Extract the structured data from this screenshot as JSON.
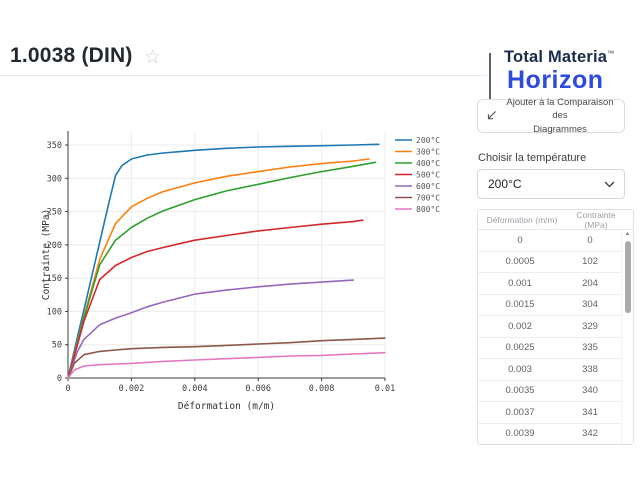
{
  "header": {
    "title": "1.0038 (DIN)",
    "favorite_icon": "star-outline"
  },
  "logo": {
    "brand": "Total Materia",
    "trademark": "™",
    "product": "Horizon",
    "brand_color": "#1c2b4a",
    "product_color": "#2f4bdb"
  },
  "compare_button": {
    "label_line1": "Ajouter à la Comparaison des",
    "label_line2": "Diagrammes",
    "icon": "compare-arrow-icon"
  },
  "temperature_selector": {
    "label": "Choisir la température",
    "selected": "200°C"
  },
  "data_table": {
    "columns": [
      "Déformation (m/m)",
      "Contrainte (MPa)"
    ],
    "rows": [
      [
        "0",
        "0"
      ],
      [
        "0.0005",
        "102"
      ],
      [
        "0.001",
        "204"
      ],
      [
        "0.0015",
        "304"
      ],
      [
        "0.002",
        "329"
      ],
      [
        "0.0025",
        "335"
      ],
      [
        "0.003",
        "338"
      ],
      [
        "0.0035",
        "340"
      ],
      [
        "0.0037",
        "341"
      ],
      [
        "0.0039",
        "342"
      ]
    ]
  },
  "chart_data": {
    "type": "line",
    "title": "",
    "xlabel": "Déformation (m/m)",
    "ylabel": "Contrainte (MPa)",
    "xlim": [
      0,
      0.01
    ],
    "ylim": [
      0,
      365
    ],
    "x_ticks": [
      0,
      0.002,
      0.004,
      0.006,
      0.008,
      0.01
    ],
    "x_tick_labels": [
      "0",
      "0.002",
      "0.004",
      "0.006",
      "0.008",
      "0.01"
    ],
    "y_ticks": [
      0,
      50,
      100,
      150,
      200,
      250,
      300,
      350
    ],
    "grid": true,
    "legend_position": "right",
    "series": [
      {
        "name": "200°C",
        "color": "#1f77b4",
        "points": [
          [
            0,
            0
          ],
          [
            0.0003,
            62
          ],
          [
            0.0005,
            102
          ],
          [
            0.001,
            204
          ],
          [
            0.0013,
            265
          ],
          [
            0.0015,
            304
          ],
          [
            0.0017,
            319
          ],
          [
            0.002,
            329
          ],
          [
            0.0025,
            335
          ],
          [
            0.003,
            338
          ],
          [
            0.0035,
            340
          ],
          [
            0.004,
            342
          ],
          [
            0.005,
            345
          ],
          [
            0.006,
            347
          ],
          [
            0.007,
            348
          ],
          [
            0.008,
            349
          ],
          [
            0.009,
            350
          ],
          [
            0.0098,
            351
          ]
        ]
      },
      {
        "name": "300°C",
        "color": "#ff7f0e",
        "points": [
          [
            0,
            0
          ],
          [
            0.0003,
            55
          ],
          [
            0.0005,
            92
          ],
          [
            0.001,
            178
          ],
          [
            0.0015,
            232
          ],
          [
            0.002,
            257
          ],
          [
            0.0025,
            270
          ],
          [
            0.003,
            280
          ],
          [
            0.004,
            293
          ],
          [
            0.005,
            303
          ],
          [
            0.006,
            310
          ],
          [
            0.007,
            317
          ],
          [
            0.008,
            322
          ],
          [
            0.009,
            326
          ],
          [
            0.0095,
            329
          ]
        ]
      },
      {
        "name": "400°C",
        "color": "#2ca02c",
        "points": [
          [
            0,
            0
          ],
          [
            0.0003,
            53
          ],
          [
            0.0005,
            90
          ],
          [
            0.001,
            170
          ],
          [
            0.0015,
            207
          ],
          [
            0.002,
            226
          ],
          [
            0.0025,
            240
          ],
          [
            0.003,
            251
          ],
          [
            0.004,
            268
          ],
          [
            0.005,
            281
          ],
          [
            0.006,
            291
          ],
          [
            0.007,
            301
          ],
          [
            0.008,
            310
          ],
          [
            0.009,
            318
          ],
          [
            0.0097,
            324
          ]
        ]
      },
      {
        "name": "500°C",
        "color": "#d62728",
        "points": [
          [
            0,
            0
          ],
          [
            0.0003,
            50
          ],
          [
            0.0005,
            85
          ],
          [
            0.001,
            148
          ],
          [
            0.0015,
            169
          ],
          [
            0.002,
            181
          ],
          [
            0.0025,
            190
          ],
          [
            0.003,
            196
          ],
          [
            0.004,
            207
          ],
          [
            0.005,
            214
          ],
          [
            0.006,
            221
          ],
          [
            0.007,
            226
          ],
          [
            0.008,
            231
          ],
          [
            0.009,
            235
          ],
          [
            0.0093,
            237
          ]
        ]
      },
      {
        "name": "600°C",
        "color": "#9467bd",
        "points": [
          [
            0,
            0
          ],
          [
            0.0003,
            40
          ],
          [
            0.0005,
            58
          ],
          [
            0.001,
            80
          ],
          [
            0.0015,
            90
          ],
          [
            0.002,
            98
          ],
          [
            0.0025,
            107
          ],
          [
            0.003,
            114
          ],
          [
            0.004,
            126
          ],
          [
            0.005,
            132
          ],
          [
            0.006,
            137
          ],
          [
            0.007,
            141
          ],
          [
            0.008,
            144
          ],
          [
            0.009,
            147
          ]
        ]
      },
      {
        "name": "700°C",
        "color": "#8c564b",
        "points": [
          [
            0,
            0
          ],
          [
            0.0002,
            22
          ],
          [
            0.0005,
            35
          ],
          [
            0.001,
            40
          ],
          [
            0.0015,
            42
          ],
          [
            0.002,
            44
          ],
          [
            0.003,
            46
          ],
          [
            0.004,
            47
          ],
          [
            0.005,
            49
          ],
          [
            0.006,
            51
          ],
          [
            0.007,
            53
          ],
          [
            0.008,
            56
          ],
          [
            0.009,
            58
          ],
          [
            0.01,
            60
          ]
        ]
      },
      {
        "name": "800°C",
        "color": "#e377c2",
        "points": [
          [
            0,
            0
          ],
          [
            0.0002,
            12
          ],
          [
            0.0005,
            18
          ],
          [
            0.001,
            20
          ],
          [
            0.0015,
            21
          ],
          [
            0.002,
            22
          ],
          [
            0.003,
            25
          ],
          [
            0.004,
            27
          ],
          [
            0.005,
            29
          ],
          [
            0.006,
            31
          ],
          [
            0.007,
            33
          ],
          [
            0.008,
            34
          ],
          [
            0.009,
            36
          ],
          [
            0.01,
            38
          ]
        ]
      }
    ]
  }
}
